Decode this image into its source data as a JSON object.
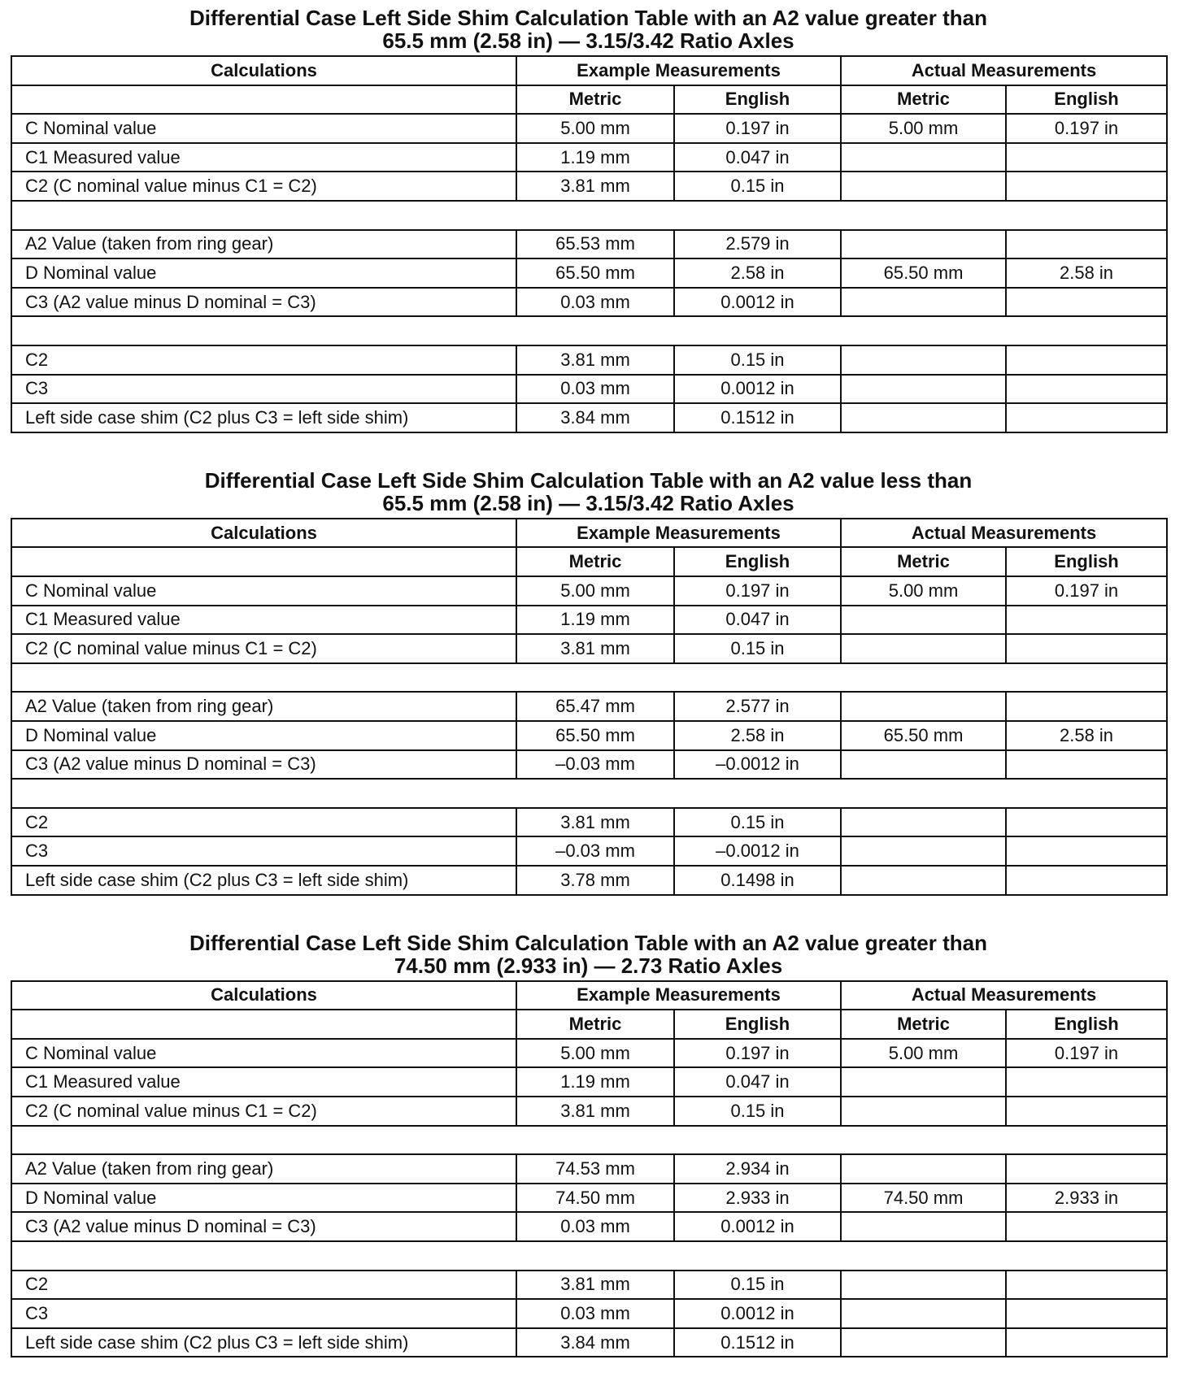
{
  "tables": [
    {
      "title_lines": [
        "Differential Case Left Side Shim Calculation Table with an A2 value greater than",
        "65.5 mm (2.58 in) — 3.15/3.42 Ratio Axles"
      ],
      "header": {
        "calculations": "Calculations",
        "example": "Example Measurements",
        "actual": "Actual Measurements",
        "example_metric": "Metric",
        "example_english": "English",
        "actual_metric": "Metric",
        "actual_english": "English"
      },
      "groups": [
        [
          {
            "label": "C Nominal value",
            "example_metric": "5.00 mm",
            "example_english": "0.197 in",
            "actual_metric": "5.00 mm",
            "actual_english": "0.197 in"
          },
          {
            "label": "C1 Measured value",
            "example_metric": "1.19 mm",
            "example_english": "0.047 in"
          },
          {
            "label": "C2 (C nominal value minus C1 = C2)",
            "example_metric": "3.81 mm",
            "example_english": "0.15 in"
          }
        ],
        [
          {
            "label": "A2 Value (taken from ring gear)",
            "example_metric": "65.53 mm",
            "example_english": "2.579 in"
          },
          {
            "label": "D Nominal value",
            "example_metric": "65.50 mm",
            "example_english": "2.58 in",
            "actual_metric": "65.50 mm",
            "actual_english": "2.58 in"
          },
          {
            "label": "C3 (A2 value minus D nominal = C3)",
            "example_metric": "0.03 mm",
            "example_english": "0.0012 in"
          }
        ],
        [
          {
            "label": "C2",
            "example_metric": "3.81 mm",
            "example_english": "0.15 in"
          },
          {
            "label": "C3",
            "example_metric": "0.03 mm",
            "example_english": "0.0012 in"
          },
          {
            "label": "Left side case shim (C2 plus C3 = left side shim)",
            "example_metric": "3.84 mm",
            "example_english": "0.1512 in"
          }
        ]
      ]
    },
    {
      "title_lines": [
        "Differential Case Left Side Shim Calculation Table with an A2 value less than",
        "65.5 mm (2.58 in) — 3.15/3.42 Ratio Axles"
      ],
      "header": {
        "calculations": "Calculations",
        "example": "Example Measurements",
        "actual": "Actual Measurements",
        "example_metric": "Metric",
        "example_english": "English",
        "actual_metric": "Metric",
        "actual_english": "English"
      },
      "groups": [
        [
          {
            "label": "C Nominal value",
            "example_metric": "5.00 mm",
            "example_english": "0.197 in",
            "actual_metric": "5.00 mm",
            "actual_english": "0.197 in"
          },
          {
            "label": "C1 Measured value",
            "example_metric": "1.19 mm",
            "example_english": "0.047 in"
          },
          {
            "label": "C2 (C nominal value minus C1 = C2)",
            "example_metric": "3.81 mm",
            "example_english": "0.15 in"
          }
        ],
        [
          {
            "label": "A2 Value (taken from ring gear)",
            "example_metric": "65.47 mm",
            "example_english": "2.577 in"
          },
          {
            "label": "D Nominal value",
            "example_metric": "65.50 mm",
            "example_english": "2.58 in",
            "actual_metric": "65.50 mm",
            "actual_english": "2.58 in"
          },
          {
            "label": "C3 (A2 value minus D nominal = C3)",
            "example_metric": "–0.03 mm",
            "example_english": "–0.0012 in"
          }
        ],
        [
          {
            "label": "C2",
            "example_metric": "3.81 mm",
            "example_english": "0.15 in"
          },
          {
            "label": "C3",
            "example_metric": "–0.03 mm",
            "example_english": "–0.0012 in"
          },
          {
            "label": "Left side case shim (C2 plus C3 = left side shim)",
            "example_metric": "3.78 mm",
            "example_english": "0.1498 in"
          }
        ]
      ]
    },
    {
      "title_lines": [
        "Differential Case Left Side Shim Calculation Table with an A2 value greater than",
        "74.50 mm (2.933 in) — 2.73 Ratio Axles"
      ],
      "header": {
        "calculations": "Calculations",
        "example": "Example Measurements",
        "actual": "Actual Measurements",
        "example_metric": "Metric",
        "example_english": "English",
        "actual_metric": "Metric",
        "actual_english": "English"
      },
      "groups": [
        [
          {
            "label": "C Nominal value",
            "example_metric": "5.00 mm",
            "example_english": "0.197 in",
            "actual_metric": "5.00 mm",
            "actual_english": "0.197 in"
          },
          {
            "label": "C1 Measured value",
            "example_metric": "1.19 mm",
            "example_english": "0.047 in"
          },
          {
            "label": "C2 (C nominal value minus C1 = C2)",
            "example_metric": "3.81 mm",
            "example_english": "0.15 in"
          }
        ],
        [
          {
            "label": "A2 Value (taken from ring gear)",
            "example_metric": "74.53 mm",
            "example_english": "2.934 in"
          },
          {
            "label": "D Nominal value",
            "example_metric": "74.50 mm",
            "example_english": "2.933 in",
            "actual_metric": "74.50 mm",
            "actual_english": "2.933 in"
          },
          {
            "label": "C3 (A2 value minus D nominal = C3)",
            "example_metric": "0.03 mm",
            "example_english": "0.0012 in"
          }
        ],
        [
          {
            "label": "C2",
            "example_metric": "3.81 mm",
            "example_english": "0.15 in"
          },
          {
            "label": "C3",
            "example_metric": "0.03 mm",
            "example_english": "0.0012 in"
          },
          {
            "label": "Left side case shim (C2 plus C3 = left side shim)",
            "example_metric": "3.84 mm",
            "example_english": "0.1512 in"
          }
        ]
      ]
    }
  ]
}
